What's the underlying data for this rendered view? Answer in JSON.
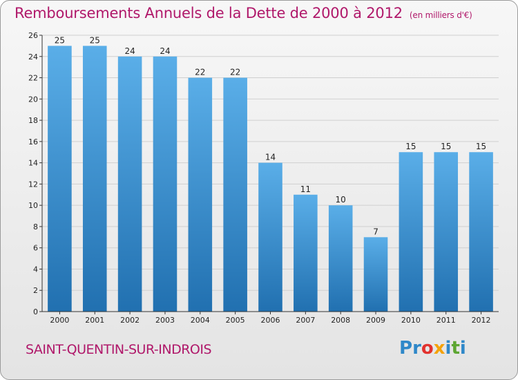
{
  "title": "Remboursements Annuels de la Dette de 2000 à 2012",
  "unit": "(en milliers d'€)",
  "place": "SAINT-QUENTIN-SUR-INDROIS",
  "logo": {
    "text": "Proxiti",
    "letters": [
      {
        "ch": "P",
        "color": "#2f88c9"
      },
      {
        "ch": "r",
        "color": "#2f88c9"
      },
      {
        "ch": "o",
        "color": "#e2322e"
      },
      {
        "ch": "x",
        "color": "#f4a20a"
      },
      {
        "ch": "i",
        "color": "#2f88c9"
      },
      {
        "ch": "t",
        "color": "#5da632"
      },
      {
        "ch": "i",
        "color": "#2f88c9"
      }
    ]
  },
  "colors": {
    "bar_top": "#5aaee8",
    "bar_bottom": "#2170b0",
    "accent": "#b0186a",
    "grid": "#cfcfcf",
    "axis": "#333333"
  },
  "chart_data": {
    "type": "bar",
    "categories": [
      "2000",
      "2001",
      "2002",
      "2003",
      "2004",
      "2005",
      "2006",
      "2007",
      "2008",
      "2009",
      "2010",
      "2011",
      "2012"
    ],
    "values": [
      25,
      25,
      24,
      24,
      22,
      22,
      14,
      11,
      10,
      7,
      15,
      15,
      15
    ],
    "data_labels": [
      "25",
      "25",
      "24",
      "24",
      "22",
      "22",
      "14",
      "11",
      "10",
      "7",
      "15",
      "15",
      "15"
    ],
    "ylim": [
      0,
      26
    ],
    "yticks": [
      0,
      2,
      4,
      6,
      8,
      10,
      12,
      14,
      16,
      18,
      20,
      22,
      24,
      26
    ],
    "grid": true
  }
}
